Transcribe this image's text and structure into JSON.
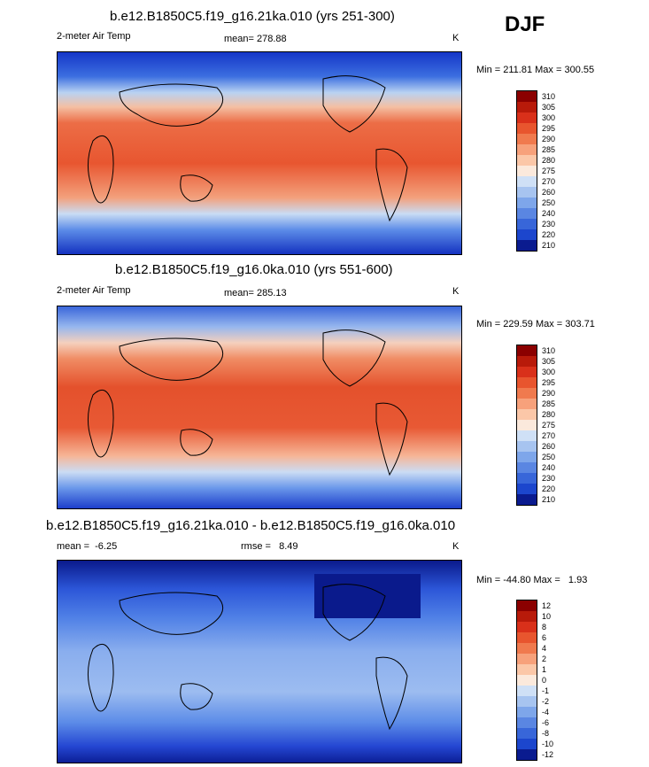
{
  "season_label": "DJF",
  "units": "K",
  "chart_data": [
    {
      "type": "heatmap",
      "title": "b.e12.B1850C5.f19_g16.21ka.010 (yrs 251-300)",
      "left_label": "2-meter Air Temp",
      "mean_label": "mean= 278.88",
      "units": "K",
      "min_max": "Min = 211.81 Max = 300.55",
      "levels": [
        "310",
        "305",
        "300",
        "295",
        "290",
        "285",
        "280",
        "275",
        "270",
        "260",
        "250",
        "240",
        "230",
        "220",
        "210"
      ]
    },
    {
      "type": "heatmap",
      "title": "b.e12.B1850C5.f19_g16.0ka.010 (yrs 551-600)",
      "left_label": "2-meter Air Temp",
      "mean_label": "mean= 285.13",
      "units": "K",
      "min_max": "Min = 229.59 Max = 303.71",
      "levels": [
        "310",
        "305",
        "300",
        "295",
        "290",
        "285",
        "280",
        "275",
        "270",
        "260",
        "250",
        "240",
        "230",
        "220",
        "210"
      ]
    },
    {
      "type": "heatmap",
      "title": "b.e12.B1850C5.f19_g16.21ka.010 - b.e12.B1850C5.f19_g16.0ka.010",
      "left_label": "mean =  -6.25",
      "mean_label": "rmse =   8.49",
      "units": "K",
      "min_max": "Min = -44.80 Max =   1.93",
      "levels": [
        "12",
        "10",
        "8",
        "6",
        "4",
        "2",
        "1",
        "0",
        "-1",
        "-2",
        "-4",
        "-6",
        "-8",
        "-10",
        "-12"
      ]
    }
  ]
}
